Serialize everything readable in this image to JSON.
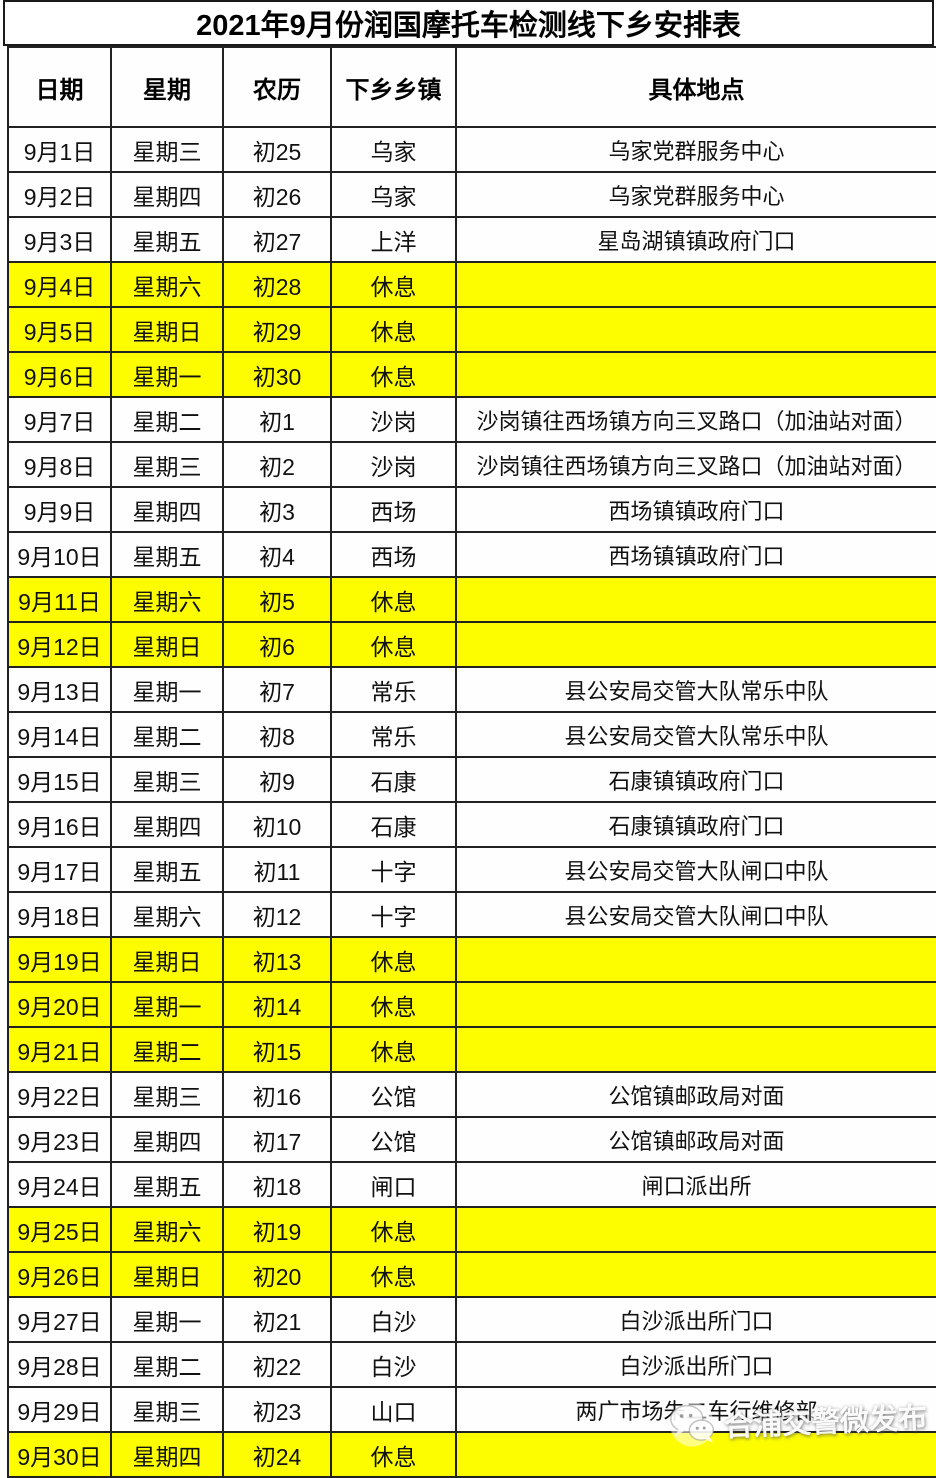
{
  "title": "2021年9月份润国摩托车检测线下乡安排表",
  "table": {
    "headers": [
      "日期",
      "星期",
      "农历",
      "下乡乡镇",
      "具体地点"
    ],
    "rows": [
      {
        "date": "9月1日",
        "week": "星期三",
        "lunar": "初25",
        "town": "乌家",
        "place": "乌家党群服务中心",
        "rest": false
      },
      {
        "date": "9月2日",
        "week": "星期四",
        "lunar": "初26",
        "town": "乌家",
        "place": "乌家党群服务中心",
        "rest": false
      },
      {
        "date": "9月3日",
        "week": "星期五",
        "lunar": "初27",
        "town": "上洋",
        "place": "星岛湖镇镇政府门口",
        "rest": false
      },
      {
        "date": "9月4日",
        "week": "星期六",
        "lunar": "初28",
        "town": "休息",
        "place": "",
        "rest": true
      },
      {
        "date": "9月5日",
        "week": "星期日",
        "lunar": "初29",
        "town": "休息",
        "place": "",
        "rest": true
      },
      {
        "date": "9月6日",
        "week": "星期一",
        "lunar": "初30",
        "town": "休息",
        "place": "",
        "rest": true
      },
      {
        "date": "9月7日",
        "week": "星期二",
        "lunar": "初1",
        "town": "沙岗",
        "place": "沙岗镇往西场镇方向三叉路口（加油站对面）",
        "rest": false
      },
      {
        "date": "9月8日",
        "week": "星期三",
        "lunar": "初2",
        "town": "沙岗",
        "place": "沙岗镇往西场镇方向三叉路口（加油站对面）",
        "rest": false
      },
      {
        "date": "9月9日",
        "week": "星期四",
        "lunar": "初3",
        "town": "西场",
        "place": "西场镇镇政府门口",
        "rest": false
      },
      {
        "date": "9月10日",
        "week": "星期五",
        "lunar": "初4",
        "town": "西场",
        "place": "西场镇镇政府门口",
        "rest": false
      },
      {
        "date": "9月11日",
        "week": "星期六",
        "lunar": "初5",
        "town": "休息",
        "place": "",
        "rest": true
      },
      {
        "date": "9月12日",
        "week": "星期日",
        "lunar": "初6",
        "town": "休息",
        "place": "",
        "rest": true
      },
      {
        "date": "9月13日",
        "week": "星期一",
        "lunar": "初7",
        "town": "常乐",
        "place": "县公安局交管大队常乐中队",
        "rest": false
      },
      {
        "date": "9月14日",
        "week": "星期二",
        "lunar": "初8",
        "town": "常乐",
        "place": "县公安局交管大队常乐中队",
        "rest": false
      },
      {
        "date": "9月15日",
        "week": "星期三",
        "lunar": "初9",
        "town": "石康",
        "place": "石康镇镇政府门口",
        "rest": false
      },
      {
        "date": "9月16日",
        "week": "星期四",
        "lunar": "初10",
        "town": "石康",
        "place": "石康镇镇政府门口",
        "rest": false
      },
      {
        "date": "9月17日",
        "week": "星期五",
        "lunar": "初11",
        "town": "十字",
        "place": "县公安局交管大队闸口中队",
        "rest": false
      },
      {
        "date": "9月18日",
        "week": "星期六",
        "lunar": "初12",
        "town": "十字",
        "place": "县公安局交管大队闸口中队",
        "rest": false
      },
      {
        "date": "9月19日",
        "week": "星期日",
        "lunar": "初13",
        "town": "休息",
        "place": "",
        "rest": true
      },
      {
        "date": "9月20日",
        "week": "星期一",
        "lunar": "初14",
        "town": "休息",
        "place": "",
        "rest": true
      },
      {
        "date": "9月21日",
        "week": "星期二",
        "lunar": "初15",
        "town": "休息",
        "place": "",
        "rest": true
      },
      {
        "date": "9月22日",
        "week": "星期三",
        "lunar": "初16",
        "town": "公馆",
        "place": "公馆镇邮政局对面",
        "rest": false
      },
      {
        "date": "9月23日",
        "week": "星期四",
        "lunar": "初17",
        "town": "公馆",
        "place": "公馆镇邮政局对面",
        "rest": false
      },
      {
        "date": "9月24日",
        "week": "星期五",
        "lunar": "初18",
        "town": "闸口",
        "place": "闸口派出所",
        "rest": false
      },
      {
        "date": "9月25日",
        "week": "星期六",
        "lunar": "初19",
        "town": "休息",
        "place": "",
        "rest": true
      },
      {
        "date": "9月26日",
        "week": "星期日",
        "lunar": "初20",
        "town": "休息",
        "place": "",
        "rest": true
      },
      {
        "date": "9月27日",
        "week": "星期一",
        "lunar": "初21",
        "town": "白沙",
        "place": "白沙派出所门口",
        "rest": false
      },
      {
        "date": "9月28日",
        "week": "星期二",
        "lunar": "初22",
        "town": "白沙",
        "place": "白沙派出所门口",
        "rest": false
      },
      {
        "date": "9月29日",
        "week": "星期三",
        "lunar": "初23",
        "town": "山口",
        "place": "两广市场朱二车行维修部",
        "rest": false
      },
      {
        "date": "9月30日",
        "week": "星期四",
        "lunar": "初24",
        "town": "休息",
        "place": "",
        "rest": true
      }
    ]
  },
  "watermark": {
    "label": "合浦交警微发布",
    "icon": "wechat-icon"
  },
  "colors": {
    "rest_row_highlight": "#fdfd00",
    "border": "#222222",
    "title_text": "#000000",
    "watermark_text": "#ffffff"
  }
}
